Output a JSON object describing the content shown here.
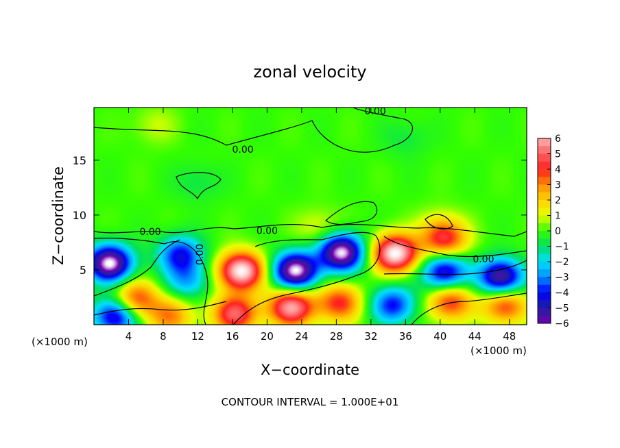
{
  "chart_data": {
    "type": "heatmap",
    "title": "zonal velocity",
    "xlabel": "X−coordinate",
    "ylabel": "Z−coordinate",
    "x_unit_left": "(×1000 m)",
    "x_unit_right": "(×1000 m)",
    "xlim": [
      0,
      50
    ],
    "ylim": [
      0,
      19.8
    ],
    "x_ticks": [
      4,
      8,
      12,
      16,
      20,
      24,
      28,
      32,
      36,
      40,
      44,
      48
    ],
    "y_ticks": [
      5,
      10,
      15
    ],
    "colorbar": {
      "ticks": [
        6,
        5,
        4,
        3,
        2,
        1,
        0,
        -1,
        -2,
        -3,
        -4,
        -5,
        -6
      ],
      "range": [
        -6,
        6
      ],
      "colors": {
        "very_positive": "#ffb0b0",
        "positive_high": "#ff2020",
        "positive_mid": "#ff8c00",
        "near_one": "#e6ff00",
        "zero": "#33ff00",
        "neg_one": "#00e060",
        "neg_two": "#00e0ff",
        "neg_three": "#0090ff",
        "neg_four": "#0000ff",
        "neg_five": "#2020a0",
        "very_negative": "#7000b0"
      }
    },
    "contour_labels": [
      {
        "x": 32.5,
        "z": 19.5,
        "text": "0.00"
      },
      {
        "x": 17.2,
        "z": 16.0,
        "text": "0.00"
      },
      {
        "x": 6.5,
        "z": 8.5,
        "text": "0.00"
      },
      {
        "x": 20.0,
        "z": 8.6,
        "text": "0.00"
      },
      {
        "x": 12.2,
        "z": 6.4,
        "text": "0.00"
      },
      {
        "x": 45.0,
        "z": 6.0,
        "text": "0.00"
      }
    ],
    "features": [
      {
        "x": 1.8,
        "z": 5.6,
        "value": -7
      },
      {
        "x": 4.8,
        "z": 2.3,
        "value": 4
      },
      {
        "x": 2.5,
        "z": 0.8,
        "value": -5
      },
      {
        "x": 10.0,
        "z": 6.4,
        "value": -4
      },
      {
        "x": 10.8,
        "z": 4.0,
        "value": -2.5
      },
      {
        "x": 8.8,
        "z": 0.8,
        "value": 3
      },
      {
        "x": 17.0,
        "z": 4.9,
        "value": 7
      },
      {
        "x": 16.3,
        "z": 1.0,
        "value": 5
      },
      {
        "x": 23.3,
        "z": 4.9,
        "value": -7
      },
      {
        "x": 22.8,
        "z": 1.6,
        "value": 6
      },
      {
        "x": 28.6,
        "z": 6.6,
        "value": -7
      },
      {
        "x": 28.4,
        "z": 2.0,
        "value": 4
      },
      {
        "x": 34.8,
        "z": 6.5,
        "value": 7
      },
      {
        "x": 34.5,
        "z": 1.8,
        "value": -4
      },
      {
        "x": 40.5,
        "z": 7.7,
        "value": 4
      },
      {
        "x": 40.5,
        "z": 4.8,
        "value": -5
      },
      {
        "x": 41.2,
        "z": 2.1,
        "value": 4
      },
      {
        "x": 47.0,
        "z": 4.3,
        "value": -6
      },
      {
        "x": 47.5,
        "z": 1.8,
        "value": 4
      },
      {
        "x": 26.0,
        "z": 8.8,
        "value": 1.2
      },
      {
        "x": 40.0,
        "z": 9.0,
        "value": 1.0
      },
      {
        "x": 12.0,
        "z": 13.0,
        "value": -0.8
      },
      {
        "x": 36.0,
        "z": 17.0,
        "value": -0.7
      },
      {
        "x": 7.0,
        "z": 18.2,
        "value": 0.8
      }
    ]
  },
  "footer": "CONTOUR INTERVAL = 1.000E+01"
}
